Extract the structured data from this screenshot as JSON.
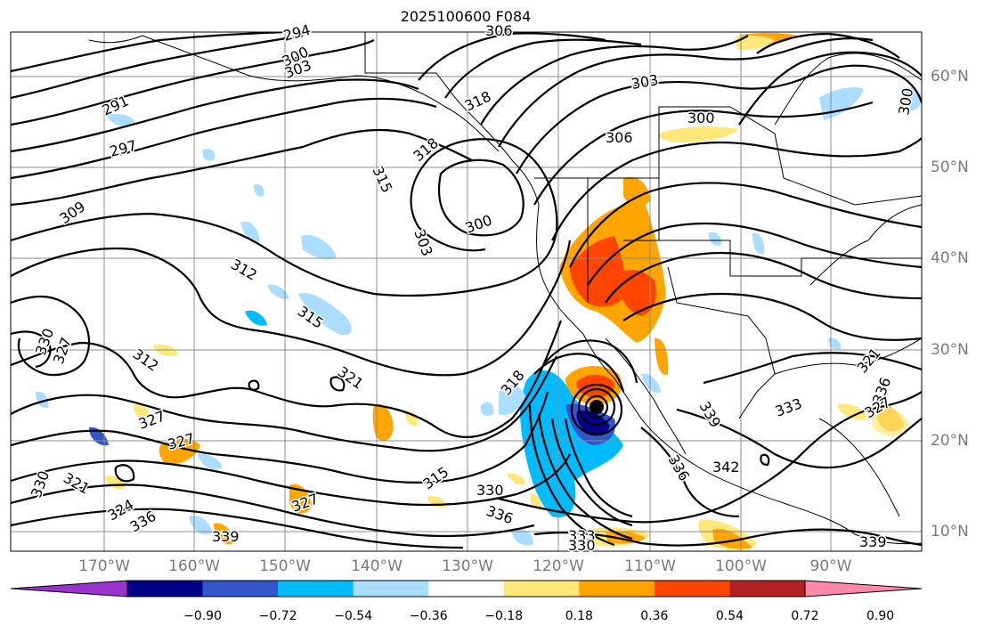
{
  "title": "2025100600 F084",
  "lon_labels": [
    "170°W",
    "160°W",
    "150°W",
    "140°W",
    "130°W",
    "120°W",
    "110°W",
    "100°W",
    "90°W"
  ],
  "lat_labels": [
    "60°N",
    "50°N",
    "40°N",
    "30°N",
    "20°N",
    "10°N"
  ],
  "contour_labels": [
    "294",
    "300",
    "303",
    "306",
    "291",
    "297",
    "303",
    "318",
    "306",
    "300",
    "315",
    "318",
    "309",
    "300",
    "303",
    "312",
    "315",
    "330",
    "327",
    "312",
    "321",
    "318",
    "327",
    "327",
    "339",
    "333",
    "336",
    "342",
    "321",
    "336",
    "327",
    "330",
    "321",
    "324",
    "336",
    "339",
    "315",
    "330",
    "336",
    "333",
    "330",
    "339",
    "327",
    "300"
  ],
  "colorbar": {
    "ticks": [
      "−0.90",
      "−0.72",
      "−0.54",
      "−0.36",
      "−0.18",
      "0.18",
      "0.36",
      "0.54",
      "0.72",
      "0.90"
    ],
    "colors": [
      "#9933cc",
      "#000088",
      "#3355cc",
      "#00bbff",
      "#aaddff",
      "#ffffff",
      "#ffe87a",
      "#ffa500",
      "#ff4500",
      "#b22222",
      "#ff88aa"
    ]
  },
  "storm_marker_icon": "storm-center-icon"
}
